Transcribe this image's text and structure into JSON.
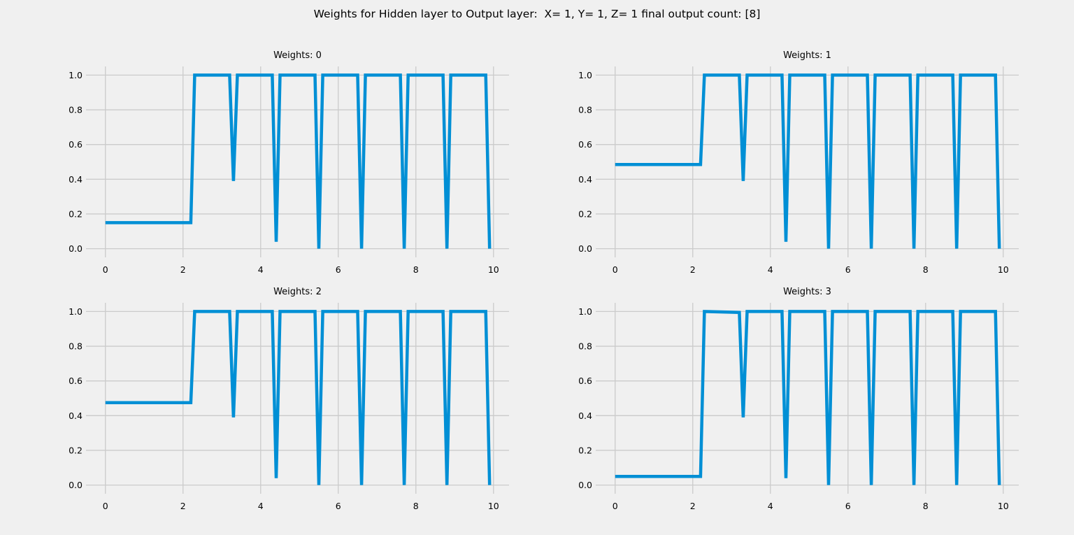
{
  "figure": {
    "suptitle": "Weights for Hidden layer to Output layer:  X= 1, Y= 1, Z= 1 final output count: [8]",
    "background": "#f0f0f0",
    "line_color": "#008fd5",
    "grid_color": "#cbcbcb"
  },
  "chart_data": [
    {
      "type": "line",
      "title": "Weights: 0",
      "xlim": [
        -0.5,
        10.4
      ],
      "ylim": [
        -0.05,
        1.05
      ],
      "xticks": [
        0,
        2,
        4,
        6,
        8,
        10
      ],
      "yticks": [
        0.0,
        0.2,
        0.4,
        0.6,
        0.8,
        1.0
      ],
      "ytick_labels": [
        "0.0",
        "0.2",
        "0.4",
        "0.6",
        "0.8",
        "1.0"
      ],
      "grid": true,
      "series": [
        {
          "x": [
            0,
            2.2,
            2.3,
            3.2,
            3.3,
            3.4,
            4.3,
            4.4,
            4.5,
            5.4,
            5.5,
            5.6,
            6.5,
            6.6,
            6.7,
            7.6,
            7.7,
            7.8,
            8.7,
            8.8,
            8.9,
            9.8,
            9.9
          ],
          "y": [
            0.15,
            0.15,
            1.0,
            1.0,
            0.39,
            1.0,
            1.0,
            0.04,
            1.0,
            1.0,
            0.0,
            1.0,
            1.0,
            0.0,
            1.0,
            1.0,
            0.0,
            1.0,
            1.0,
            0.0,
            1.0,
            1.0,
            0.0
          ]
        }
      ]
    },
    {
      "type": "line",
      "title": "Weights: 1",
      "xlim": [
        -0.5,
        10.4
      ],
      "ylim": [
        -0.05,
        1.05
      ],
      "xticks": [
        0,
        2,
        4,
        6,
        8,
        10
      ],
      "yticks": [
        0.0,
        0.2,
        0.4,
        0.6,
        0.8,
        1.0
      ],
      "ytick_labels": [
        "0.0",
        "0.2",
        "0.4",
        "0.6",
        "0.8",
        "1.0"
      ],
      "grid": true,
      "series": [
        {
          "x": [
            0,
            2.2,
            2.3,
            3.2,
            3.3,
            3.4,
            4.3,
            4.4,
            4.5,
            5.4,
            5.5,
            5.6,
            6.5,
            6.6,
            6.7,
            7.6,
            7.7,
            7.8,
            8.7,
            8.8,
            8.9,
            9.8,
            9.9
          ],
          "y": [
            0.485,
            0.485,
            1.0,
            1.0,
            0.39,
            1.0,
            1.0,
            0.04,
            1.0,
            1.0,
            0.0,
            1.0,
            1.0,
            0.0,
            1.0,
            1.0,
            0.0,
            1.0,
            1.0,
            0.0,
            1.0,
            1.0,
            0.0
          ]
        }
      ]
    },
    {
      "type": "line",
      "title": "Weights: 2",
      "xlim": [
        -0.5,
        10.4
      ],
      "ylim": [
        -0.05,
        1.05
      ],
      "xticks": [
        0,
        2,
        4,
        6,
        8,
        10
      ],
      "yticks": [
        0.0,
        0.2,
        0.4,
        0.6,
        0.8,
        1.0
      ],
      "ytick_labels": [
        "0.0",
        "0.2",
        "0.4",
        "0.6",
        "0.8",
        "1.0"
      ],
      "grid": true,
      "series": [
        {
          "x": [
            0,
            2.2,
            2.3,
            3.2,
            3.3,
            3.4,
            4.3,
            4.4,
            4.5,
            5.4,
            5.5,
            5.6,
            6.5,
            6.6,
            6.7,
            7.6,
            7.7,
            7.8,
            8.7,
            8.8,
            8.9,
            9.8,
            9.9
          ],
          "y": [
            0.475,
            0.475,
            1.0,
            1.0,
            0.39,
            1.0,
            1.0,
            0.04,
            1.0,
            1.0,
            0.0,
            1.0,
            1.0,
            0.0,
            1.0,
            1.0,
            0.0,
            1.0,
            1.0,
            0.0,
            1.0,
            1.0,
            0.0
          ]
        }
      ]
    },
    {
      "type": "line",
      "title": "Weights: 3",
      "xlim": [
        -0.5,
        10.4
      ],
      "ylim": [
        -0.05,
        1.05
      ],
      "xticks": [
        0,
        2,
        4,
        6,
        8,
        10
      ],
      "yticks": [
        0.0,
        0.2,
        0.4,
        0.6,
        0.8,
        1.0
      ],
      "ytick_labels": [
        "0.0",
        "0.2",
        "0.4",
        "0.6",
        "0.8",
        "1.0"
      ],
      "grid": true,
      "series": [
        {
          "x": [
            0,
            2.2,
            2.3,
            3.2,
            3.3,
            3.4,
            4.3,
            4.4,
            4.5,
            5.4,
            5.5,
            5.6,
            6.5,
            6.6,
            6.7,
            7.6,
            7.7,
            7.8,
            8.7,
            8.8,
            8.9,
            9.8,
            9.9
          ],
          "y": [
            0.05,
            0.05,
            1.0,
            0.995,
            0.39,
            1.0,
            1.0,
            0.04,
            1.0,
            1.0,
            0.0,
            1.0,
            1.0,
            0.0,
            1.0,
            1.0,
            0.0,
            1.0,
            1.0,
            0.0,
            1.0,
            1.0,
            0.0
          ]
        }
      ]
    }
  ]
}
